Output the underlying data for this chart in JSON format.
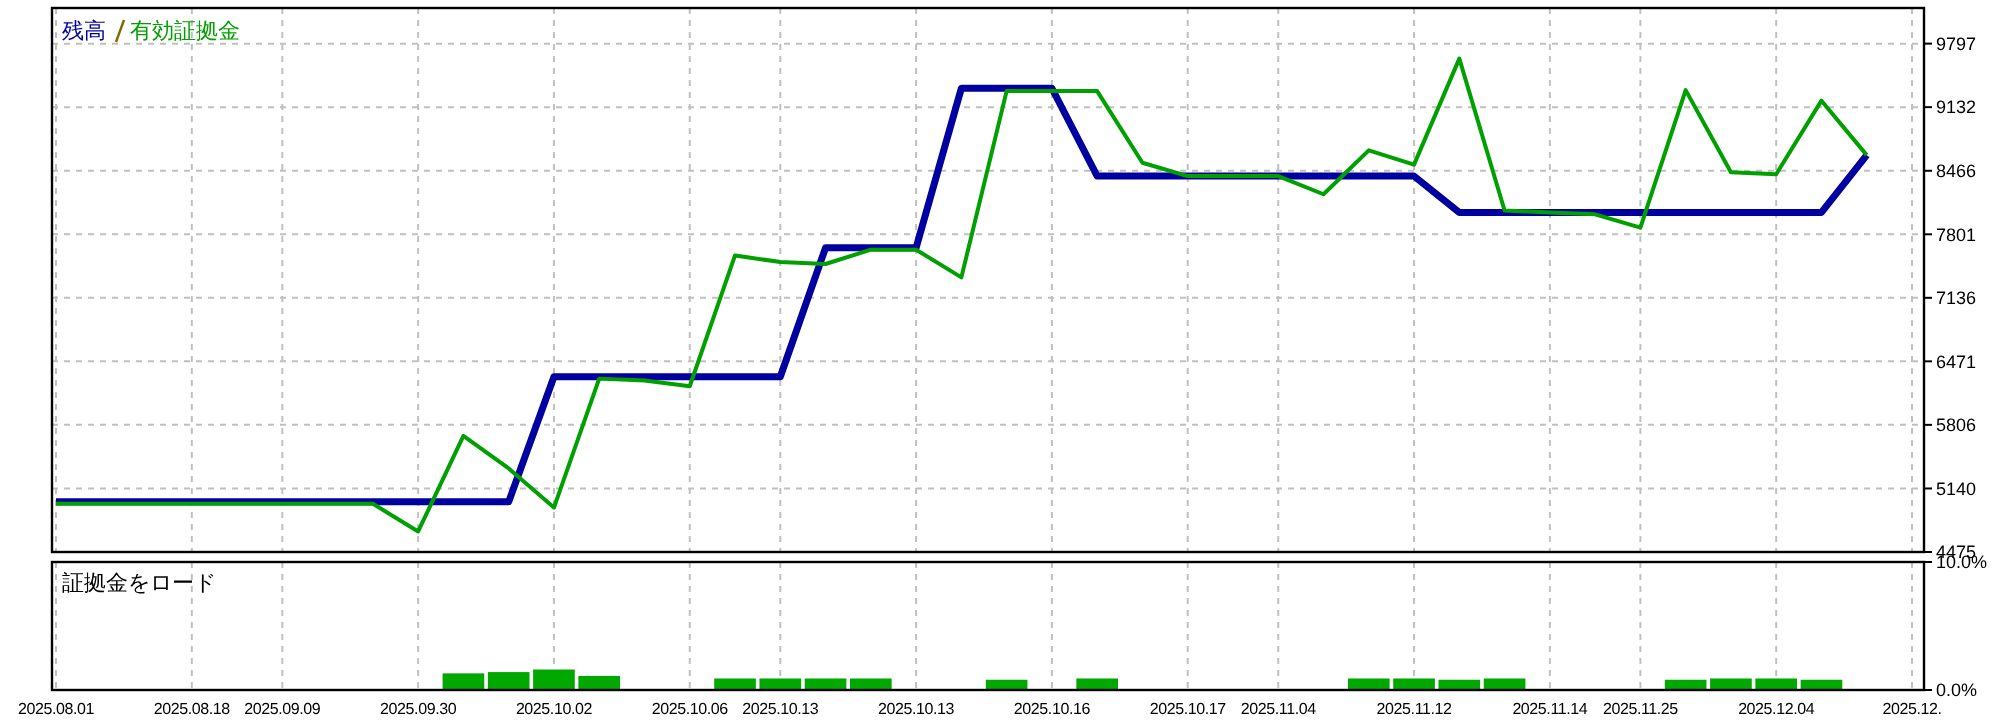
{
  "chart_data": [
    {
      "type": "line",
      "legend": "top left",
      "grid": true,
      "tick_labels": "y",
      "categories": [
        "2025.08.01",
        null,
        null,
        "2025.08.18",
        null,
        "2025.09.09",
        null,
        null,
        "2025.09.30",
        null,
        null,
        "2025.10.02",
        null,
        null,
        "2025.10.06",
        null,
        "2025.10.13",
        null,
        null,
        "2025.10.13",
        null,
        null,
        "2025.10.16",
        null,
        null,
        "2025.10.17",
        null,
        "2025.11.04",
        null,
        null,
        "2025.11.12",
        null,
        null,
        "2025.11.14",
        null,
        "2025.11.25",
        null,
        null,
        "2025.12.04",
        null,
        null,
        "2025.12."
      ],
      "ylim": [
        4475,
        10170
      ],
      "yticks": [
        4475,
        5140,
        5806,
        6471,
        7136,
        7801,
        8466,
        9132,
        9797
      ],
      "series": [
        {
          "name": "残高",
          "color": "#0000a0",
          "values": [
            5000,
            5000,
            5000,
            5000,
            5000,
            5000,
            5000,
            5000,
            5000,
            5000,
            5000,
            6310,
            6310,
            6310,
            6310,
            6310,
            6310,
            7660,
            7660,
            7660,
            9330,
            9330,
            9330,
            8410,
            8410,
            8410,
            8410,
            8410,
            8410,
            8410,
            8410,
            8030,
            8030,
            8030,
            8030,
            8030,
            8030,
            8030,
            8030,
            8030,
            8630,
            null
          ]
        },
        {
          "name": "有効証拠金",
          "color": "#00a000",
          "values": [
            4980,
            4980,
            4980,
            4980,
            4980,
            4980,
            4980,
            4980,
            4690,
            5690,
            5350,
            4940,
            6290,
            6270,
            6210,
            7580,
            7510,
            7490,
            7640,
            7640,
            7350,
            9300,
            9300,
            9300,
            8550,
            8410,
            8410,
            8410,
            8220,
            8680,
            8530,
            9640,
            8050,
            8030,
            8010,
            7870,
            9310,
            8450,
            8430,
            9200,
            8630,
            null
          ]
        }
      ]
    },
    {
      "type": "bar",
      "title": "証拠金をロード",
      "grid": "x",
      "categories": [
        "2025.08.01",
        null,
        null,
        "2025.08.18",
        null,
        "2025.09.09",
        null,
        null,
        "2025.09.30",
        null,
        null,
        "2025.10.02",
        null,
        null,
        "2025.10.06",
        null,
        "2025.10.13",
        null,
        null,
        "2025.10.13",
        null,
        null,
        "2025.10.16",
        null,
        null,
        "2025.10.17",
        null,
        "2025.11.04",
        null,
        null,
        "2025.11.12",
        null,
        null,
        "2025.11.14",
        null,
        "2025.11.25",
        null,
        null,
        "2025.12.04",
        null,
        null,
        "2025.12."
      ],
      "ylim": [
        0,
        10
      ],
      "yticks": [
        {
          "value": 0,
          "label": "0.0%"
        },
        {
          "value": 10,
          "label": "10.0%"
        }
      ],
      "series": [
        {
          "color": "#00a800",
          "values": [
            null,
            null,
            null,
            null,
            null,
            null,
            null,
            null,
            null,
            1.3,
            1.4,
            1.6,
            1.1,
            null,
            null,
            0.9,
            0.9,
            0.9,
            0.9,
            null,
            null,
            0.8,
            null,
            0.9,
            null,
            null,
            null,
            null,
            null,
            0.9,
            0.9,
            0.8,
            0.9,
            null,
            null,
            null,
            0.8,
            0.9,
            0.9,
            0.8,
            null,
            null
          ]
        }
      ]
    }
  ]
}
